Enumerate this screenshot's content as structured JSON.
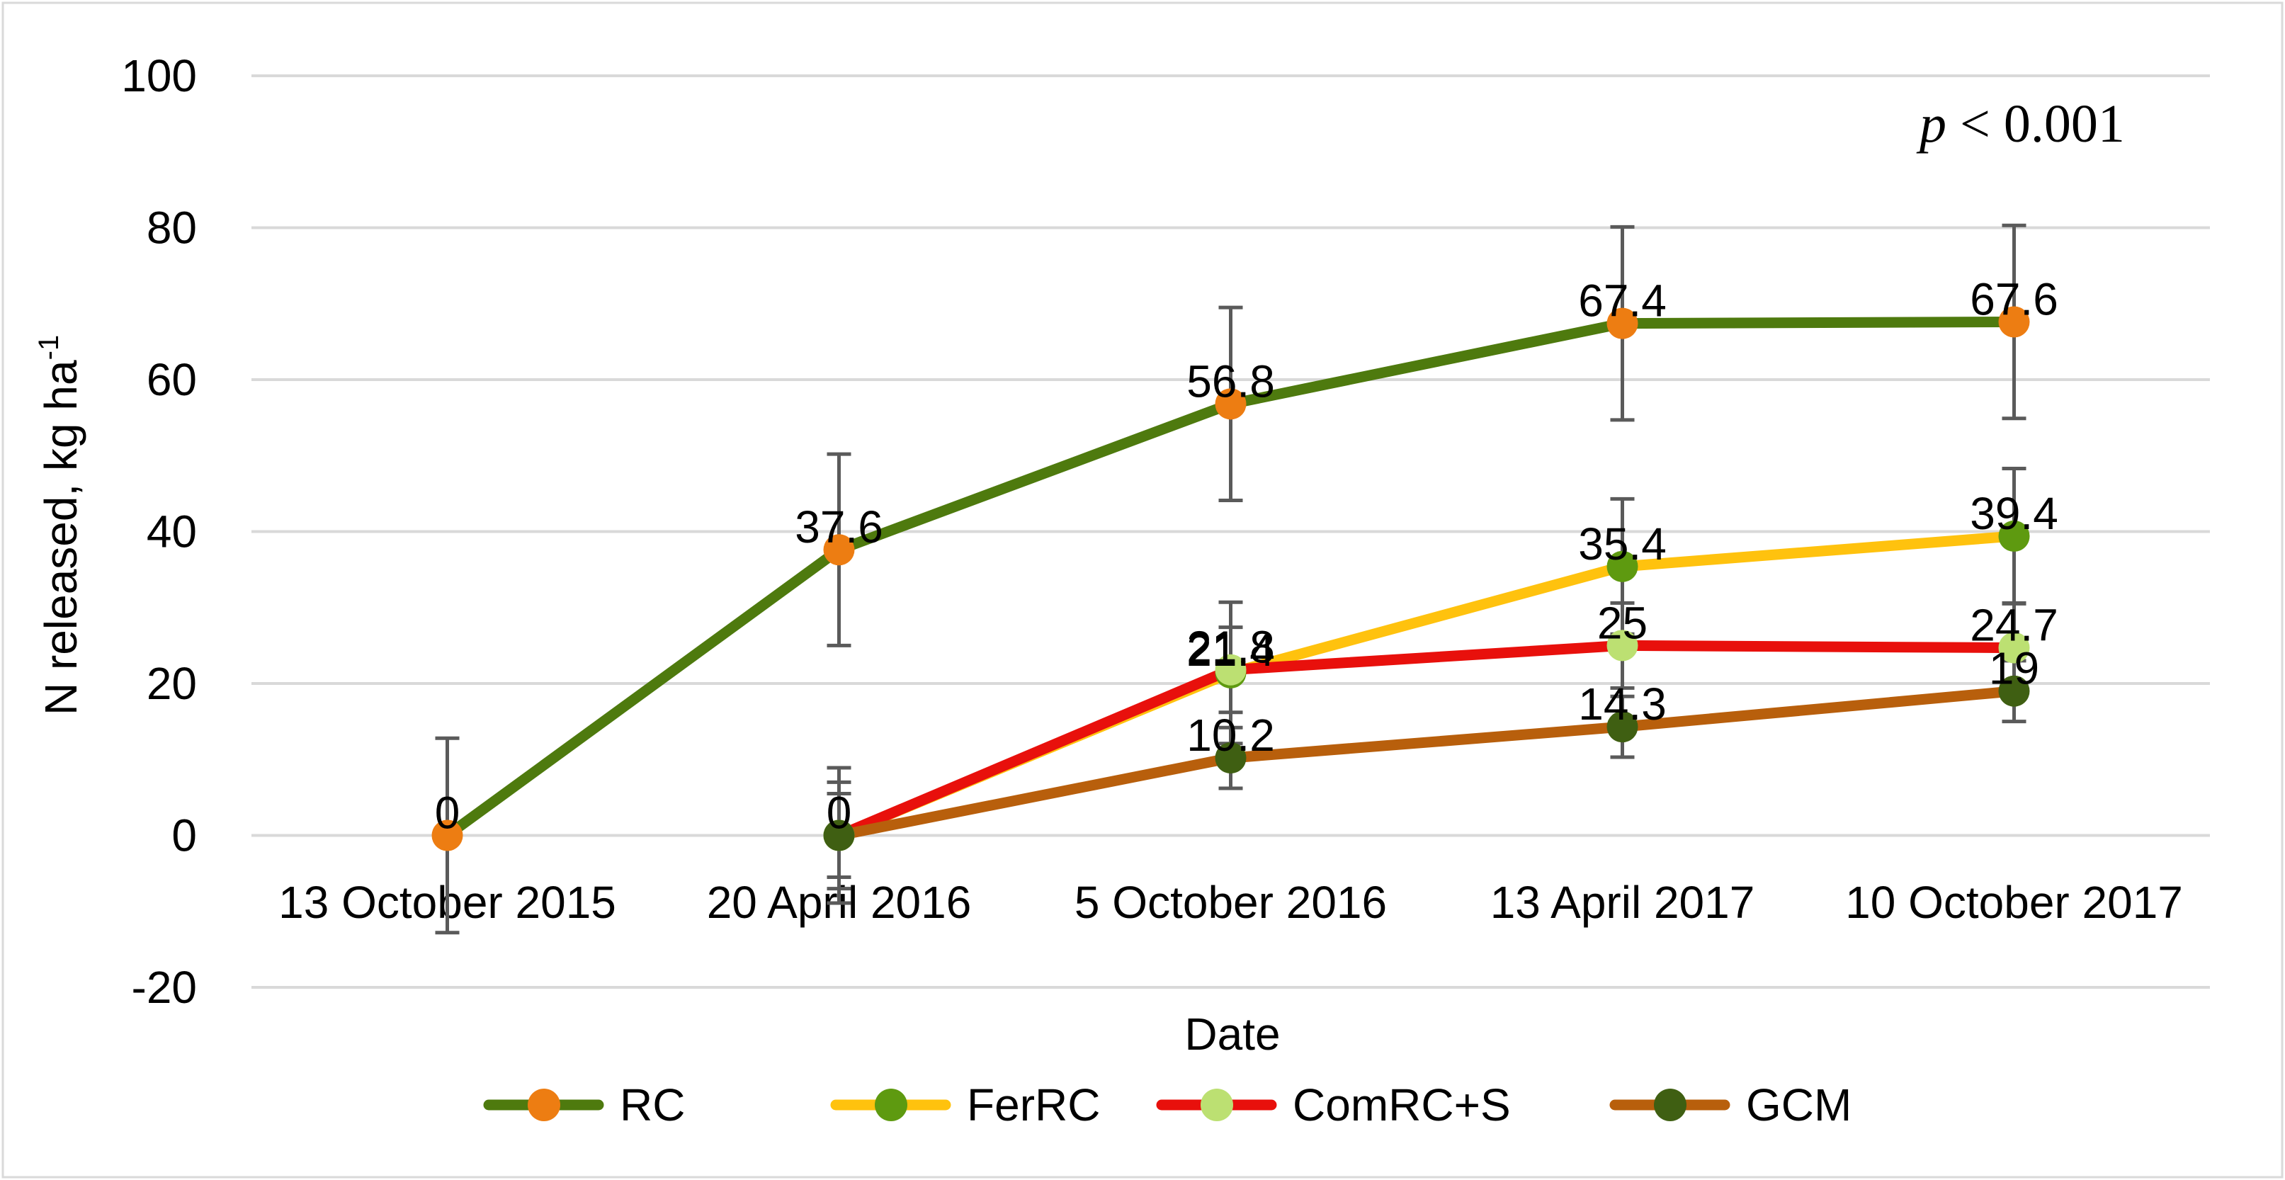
{
  "chart_data": {
    "type": "line",
    "title": "",
    "xlabel": "Date",
    "ylabel": "N released, kg ha",
    "ylabel_sup": "-1",
    "ylim": [
      -20,
      100
    ],
    "yticks": [
      -20,
      0,
      20,
      40,
      60,
      80,
      100
    ],
    "grid": true,
    "legend_position": "bottom",
    "annotation": {
      "italic": "p",
      "rest": " < 0.001"
    },
    "categories": [
      "13 October 2015",
      "20 April 2016",
      "5 October 2016",
      "13 April 2017",
      "10 October 2017"
    ],
    "series": [
      {
        "name": "RC",
        "line_color": "#4E7A0E",
        "marker_color": "#ED7D12",
        "values": [
          0,
          37.6,
          56.8,
          67.4,
          67.6
        ],
        "errors": [
          12.8,
          12.6,
          12.7,
          12.7,
          12.7
        ],
        "labels": [
          "0",
          "37.6",
          "56.8",
          "67.4",
          "67.6"
        ]
      },
      {
        "name": "FerRC",
        "line_color": "#FFC20E",
        "marker_color": "#5E9A10",
        "values": [
          null,
          0,
          21.4,
          35.4,
          39.4
        ],
        "errors": [
          null,
          8.9,
          9.3,
          8.9,
          8.9
        ],
        "labels": [
          "",
          "",
          "21.4",
          "35.4",
          "39.4"
        ]
      },
      {
        "name": "ComRC+S",
        "line_color": "#E8100C",
        "marker_color": "#BCE072",
        "values": [
          null,
          0,
          21.8,
          25,
          24.7
        ],
        "errors": [
          null,
          7.0,
          5.6,
          5.6,
          5.9
        ],
        "labels": [
          "",
          "",
          "21.8",
          "25",
          "24.7"
        ]
      },
      {
        "name": "GCM",
        "line_color": "#B85F0C",
        "marker_color": "#3F5F12",
        "values": [
          null,
          0,
          10.2,
          14.3,
          19
        ],
        "errors": [
          null,
          5.5,
          4.0,
          4.0,
          4.0
        ],
        "labels": [
          "",
          "0",
          "10.2",
          "14.3",
          "19"
        ]
      }
    ]
  }
}
